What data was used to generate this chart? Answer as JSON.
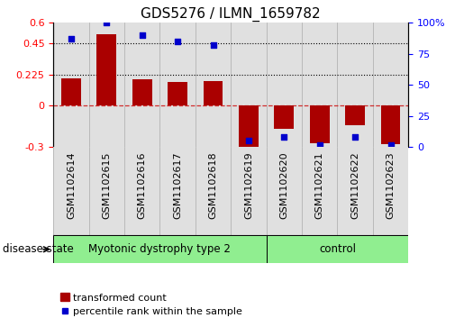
{
  "title": "GDS5276 / ILMN_1659782",
  "samples": [
    "GSM1102614",
    "GSM1102615",
    "GSM1102616",
    "GSM1102617",
    "GSM1102618",
    "GSM1102619",
    "GSM1102620",
    "GSM1102621",
    "GSM1102622",
    "GSM1102623"
  ],
  "bar_values": [
    0.2,
    0.52,
    0.19,
    0.17,
    0.18,
    -0.31,
    -0.17,
    -0.27,
    -0.14,
    -0.28
  ],
  "percentile_values": [
    87,
    100,
    90,
    85,
    82,
    5,
    8,
    2,
    8,
    2
  ],
  "bar_color": "#aa0000",
  "dot_color": "#0000cc",
  "ylim_left": [
    -0.3,
    0.6
  ],
  "ylim_right": [
    0,
    100
  ],
  "yticks_left": [
    -0.3,
    0.0,
    0.225,
    0.45,
    0.6
  ],
  "yticks_right": [
    0,
    25,
    50,
    75,
    100
  ],
  "ytick_labels_left": [
    "-0.3",
    "0",
    "0.225",
    "0.45",
    "0.6"
  ],
  "ytick_labels_right": [
    "0",
    "25",
    "50",
    "75",
    "100%"
  ],
  "hlines": [
    0.225,
    0.45
  ],
  "zero_line": 0.0,
  "group1_label": "Myotonic dystrophy type 2",
  "group1_samples": 6,
  "group2_label": "control",
  "group2_samples": 4,
  "group_color": "#90ee90",
  "group_label_text": "disease state",
  "legend_bar_label": "transformed count",
  "legend_dot_label": "percentile rank within the sample",
  "bar_width": 0.55,
  "title_fontsize": 11,
  "tick_fontsize": 8,
  "label_fontsize": 8.5,
  "col_bg_color": "#e0e0e0",
  "col_line_color": "#aaaaaa"
}
